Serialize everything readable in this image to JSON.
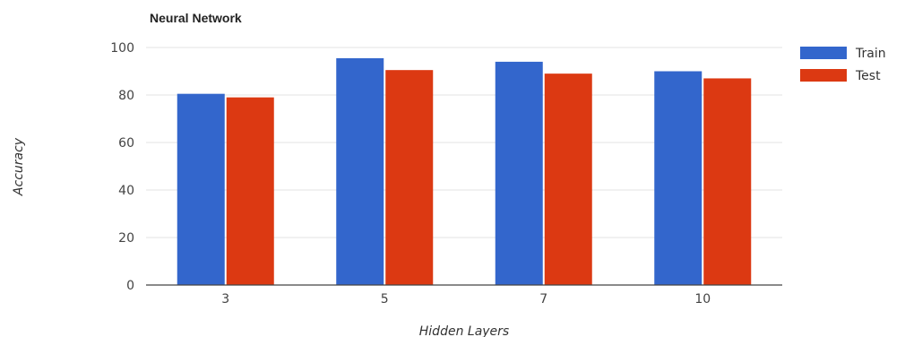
{
  "chart_data": {
    "type": "bar",
    "title": "Neural Network",
    "xlabel": "Hidden Layers",
    "ylabel": "Accuracy",
    "categories": [
      "3",
      "5",
      "7",
      "10"
    ],
    "series": [
      {
        "name": "Train",
        "values": [
          80.5,
          95.5,
          94,
          90
        ],
        "color": "#3366cc"
      },
      {
        "name": "Test",
        "values": [
          79,
          90.5,
          89,
          87
        ],
        "color": "#dc3912"
      }
    ],
    "ylim": [
      0,
      100
    ],
    "yticks": [
      0,
      20,
      40,
      60,
      80,
      100
    ],
    "grid": true,
    "legend_position": "top-right"
  }
}
